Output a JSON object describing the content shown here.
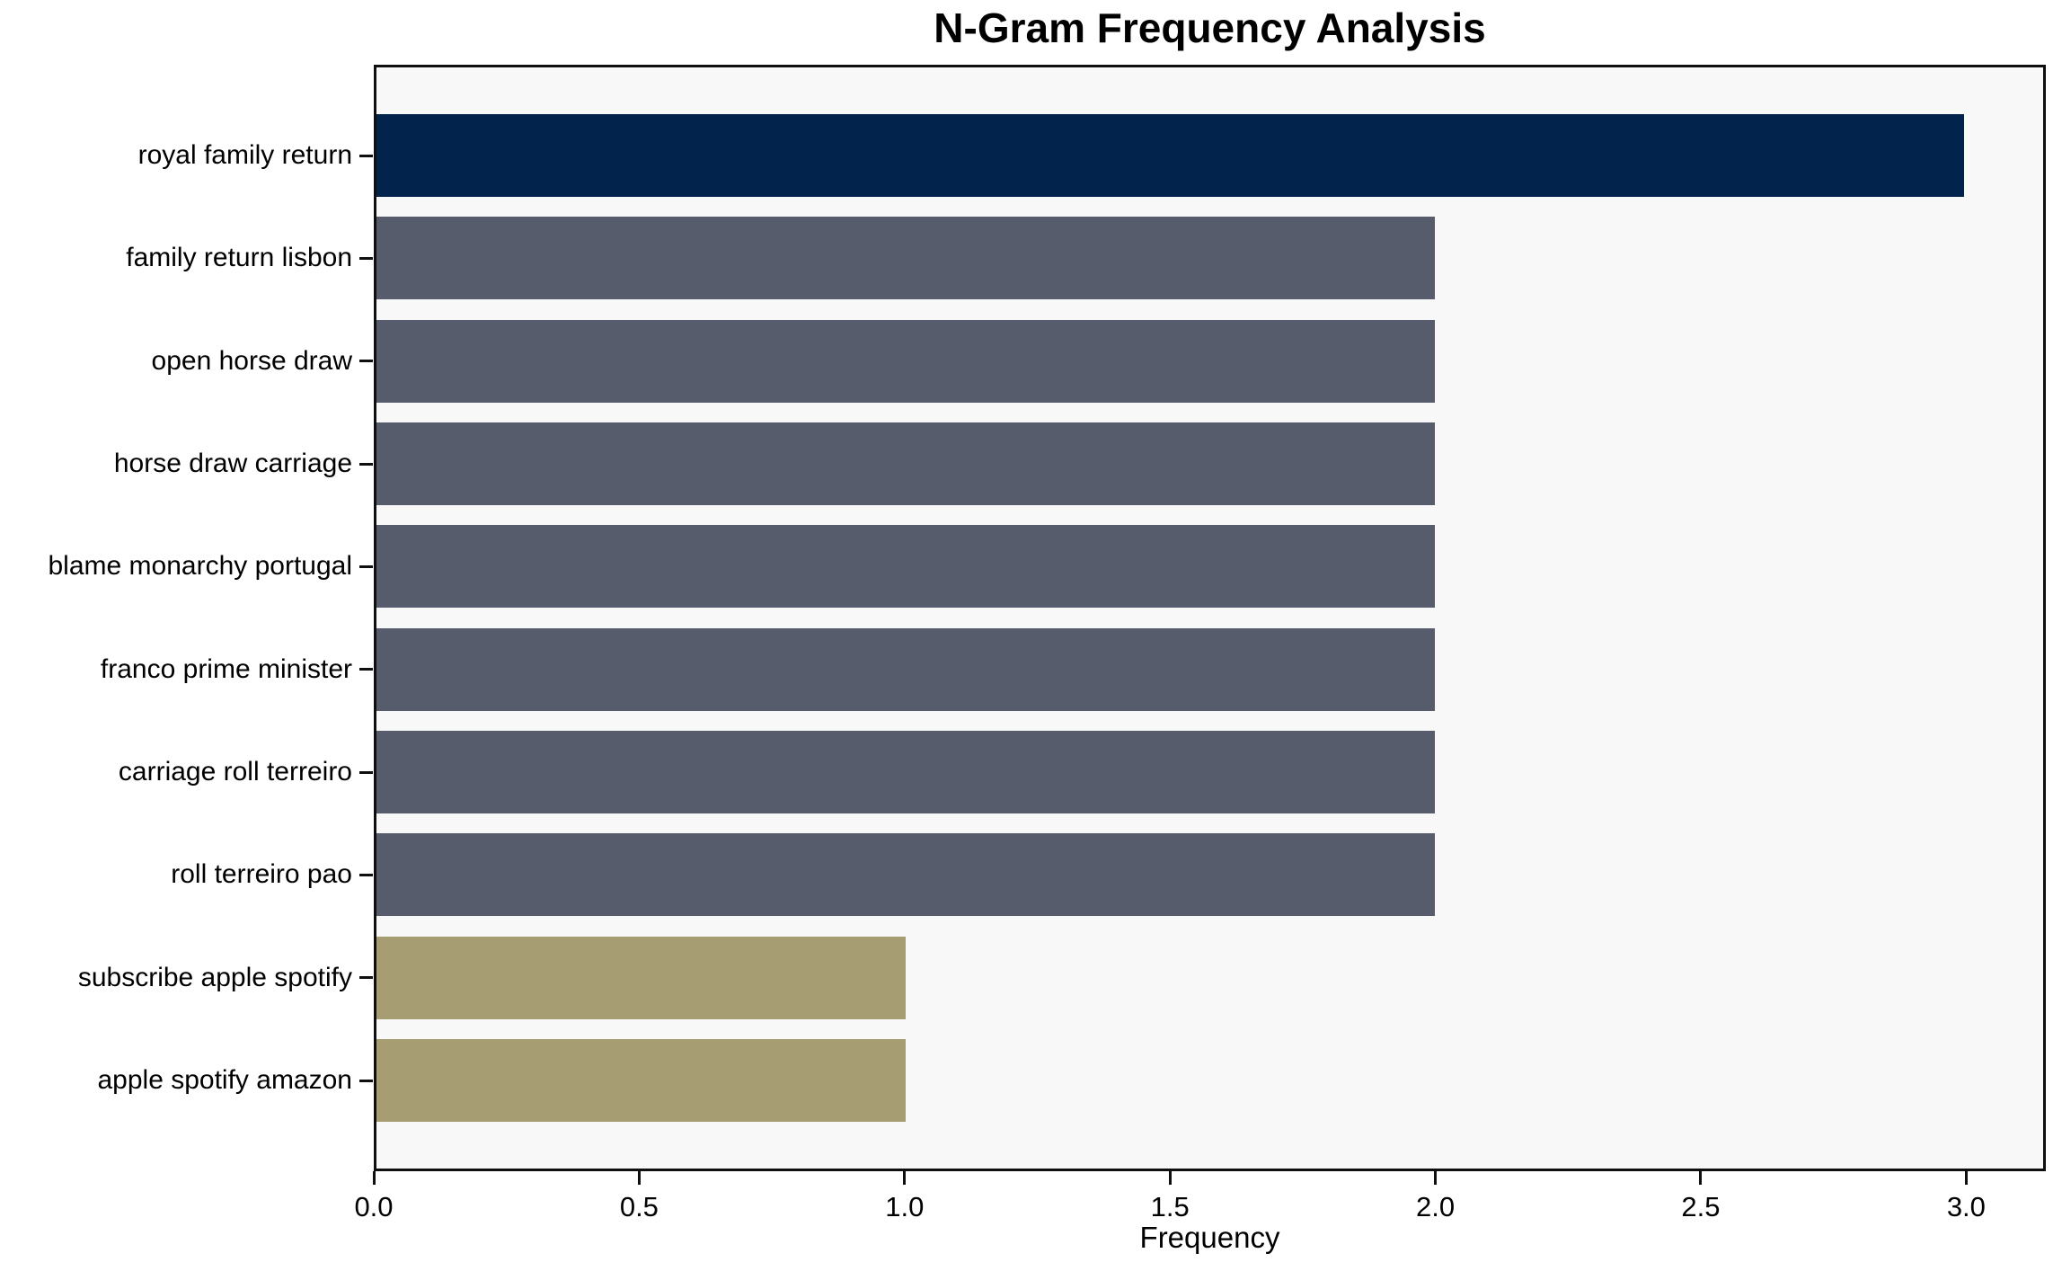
{
  "title": "N-Gram Frequency Analysis",
  "chart_data": {
    "type": "bar",
    "orientation": "horizontal",
    "title": "N-Gram Frequency Analysis",
    "xlabel": "Frequency",
    "ylabel": "",
    "categories": [
      "royal family return",
      "family return lisbon",
      "open horse draw",
      "horse draw carriage",
      "blame monarchy portugal",
      "franco prime minister",
      "carriage roll terreiro",
      "roll terreiro pao",
      "subscribe apple spotify",
      "apple spotify amazon"
    ],
    "values": [
      3,
      2,
      2,
      2,
      2,
      2,
      2,
      2,
      1,
      1
    ],
    "bar_colors": [
      "#02234b",
      "#565c6b",
      "#565c6b",
      "#565c6b",
      "#565c6b",
      "#565c6b",
      "#565c6b",
      "#565c6b",
      "#a79d72",
      "#a79d72"
    ],
    "xlim": [
      0,
      3.15
    ],
    "x_ticks": [
      {
        "value": 0.0,
        "label": "0.0"
      },
      {
        "value": 0.5,
        "label": "0.5"
      },
      {
        "value": 1.0,
        "label": "1.0"
      },
      {
        "value": 1.5,
        "label": "1.5"
      },
      {
        "value": 2.0,
        "label": "2.0"
      },
      {
        "value": 2.5,
        "label": "2.5"
      },
      {
        "value": 3.0,
        "label": "3.0"
      }
    ],
    "grid": false,
    "legend": false,
    "plot_background": "#f8f8f8",
    "figure_background": "#ffffff",
    "frame_color": "#0f0f0f"
  }
}
